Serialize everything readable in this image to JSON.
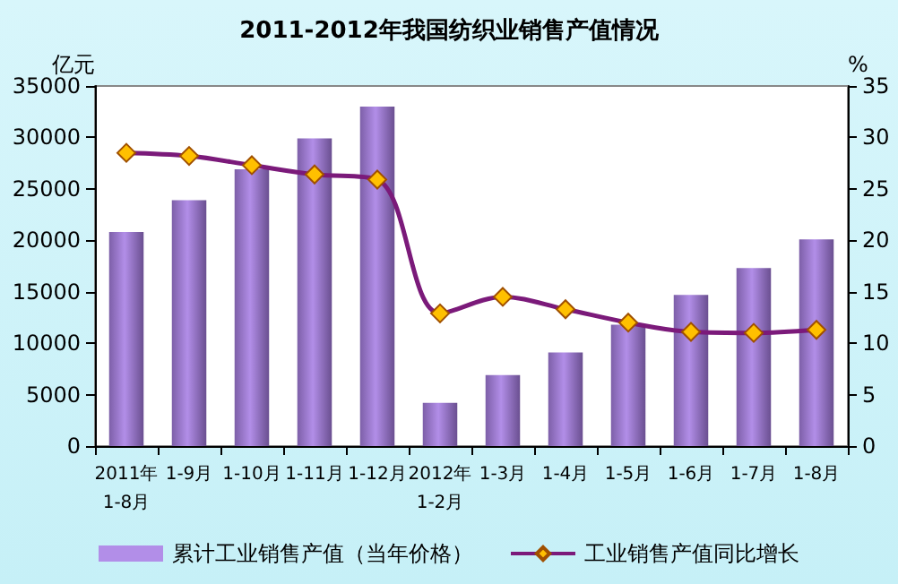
{
  "chart_data": {
    "type": "bar",
    "title": "2011-2012年我国纺织业销售产值情况",
    "ylabel": "亿元",
    "y2label": "%",
    "categories": [
      "2011年\n1-8月",
      "1-9月",
      "1-10月",
      "1-11月",
      "1-12月",
      "2012年\n1-2月",
      "1-3月",
      "1-4月",
      "1-5月",
      "1-6月",
      "1-7月",
      "1-8月"
    ],
    "series": [
      {
        "name": "累计工业销售产值（当年价格）",
        "color": "#b28ee8",
        "values": [
          20800,
          23900,
          26900,
          29900,
          33000,
          4200,
          6900,
          9100,
          11800,
          14700,
          17300,
          20100
        ]
      },
      {
        "name": "工业销售产值同比增长",
        "type": "line",
        "axis": "y2",
        "color": "#7b1a7a",
        "marker": "diamond",
        "values": [
          28.5,
          28.2,
          27.3,
          26.4,
          25.9,
          12.9,
          14.5,
          13.3,
          12.0,
          11.1,
          11.0,
          11.3
        ]
      }
    ],
    "ylim": [
      0,
      35000
    ],
    "yticks": [
      0,
      5000,
      10000,
      15000,
      20000,
      25000,
      30000,
      35000
    ],
    "y2lim": [
      0,
      35
    ],
    "y2ticks": [
      0,
      5,
      10,
      15,
      20,
      25,
      30,
      35
    ],
    "grid": false,
    "legend": "bottom"
  }
}
